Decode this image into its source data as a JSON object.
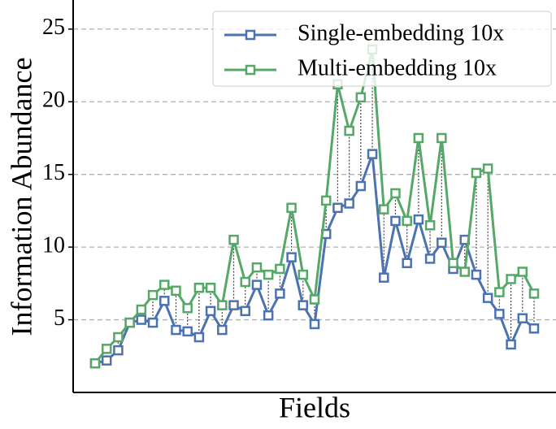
{
  "chart_data": {
    "type": "line",
    "xlabel": "Fields",
    "ylabel": "Information Abundance",
    "categories": [
      null,
      null,
      null,
      null,
      null,
      null,
      null,
      null,
      null,
      null,
      null,
      null,
      null,
      null,
      null,
      null,
      null,
      null,
      null,
      null,
      null,
      null,
      null,
      null,
      null,
      null,
      null,
      null,
      null,
      null,
      null,
      null,
      null,
      null,
      null,
      null,
      null,
      null,
      null
    ],
    "series": [
      {
        "name": "Single-embedding 10x",
        "color": "#4c72b0",
        "values": [
          2.0,
          2.2,
          2.9,
          4.8,
          5.0,
          4.8,
          6.3,
          4.3,
          4.2,
          3.8,
          5.6,
          4.3,
          6.0,
          5.6,
          7.4,
          5.3,
          6.8,
          9.3,
          6.0,
          4.7,
          10.9,
          12.7,
          13.0,
          14.2,
          16.4,
          7.9,
          11.8,
          8.9,
          11.9,
          9.2,
          10.3,
          8.5,
          10.5,
          8.1,
          6.5,
          5.4,
          3.3,
          5.1,
          4.4
        ]
      },
      {
        "name": "Multi-embedding 10x",
        "color": "#55a868",
        "values": [
          2.0,
          3.0,
          3.8,
          4.8,
          5.7,
          6.7,
          7.4,
          7.0,
          5.8,
          7.2,
          7.2,
          6.0,
          10.5,
          7.6,
          8.6,
          8.1,
          8.5,
          12.7,
          8.1,
          6.4,
          13.2,
          21.2,
          18.0,
          20.3,
          23.6,
          12.6,
          13.7,
          11.8,
          17.5,
          11.5,
          17.5,
          8.9,
          8.3,
          15.1,
          15.4,
          6.9,
          7.8,
          8.3,
          6.8
        ]
      }
    ],
    "ylim": [
      0,
      27
    ],
    "yticks": [
      5,
      10,
      15,
      20,
      25
    ],
    "grid": true,
    "legend": "upper right"
  }
}
